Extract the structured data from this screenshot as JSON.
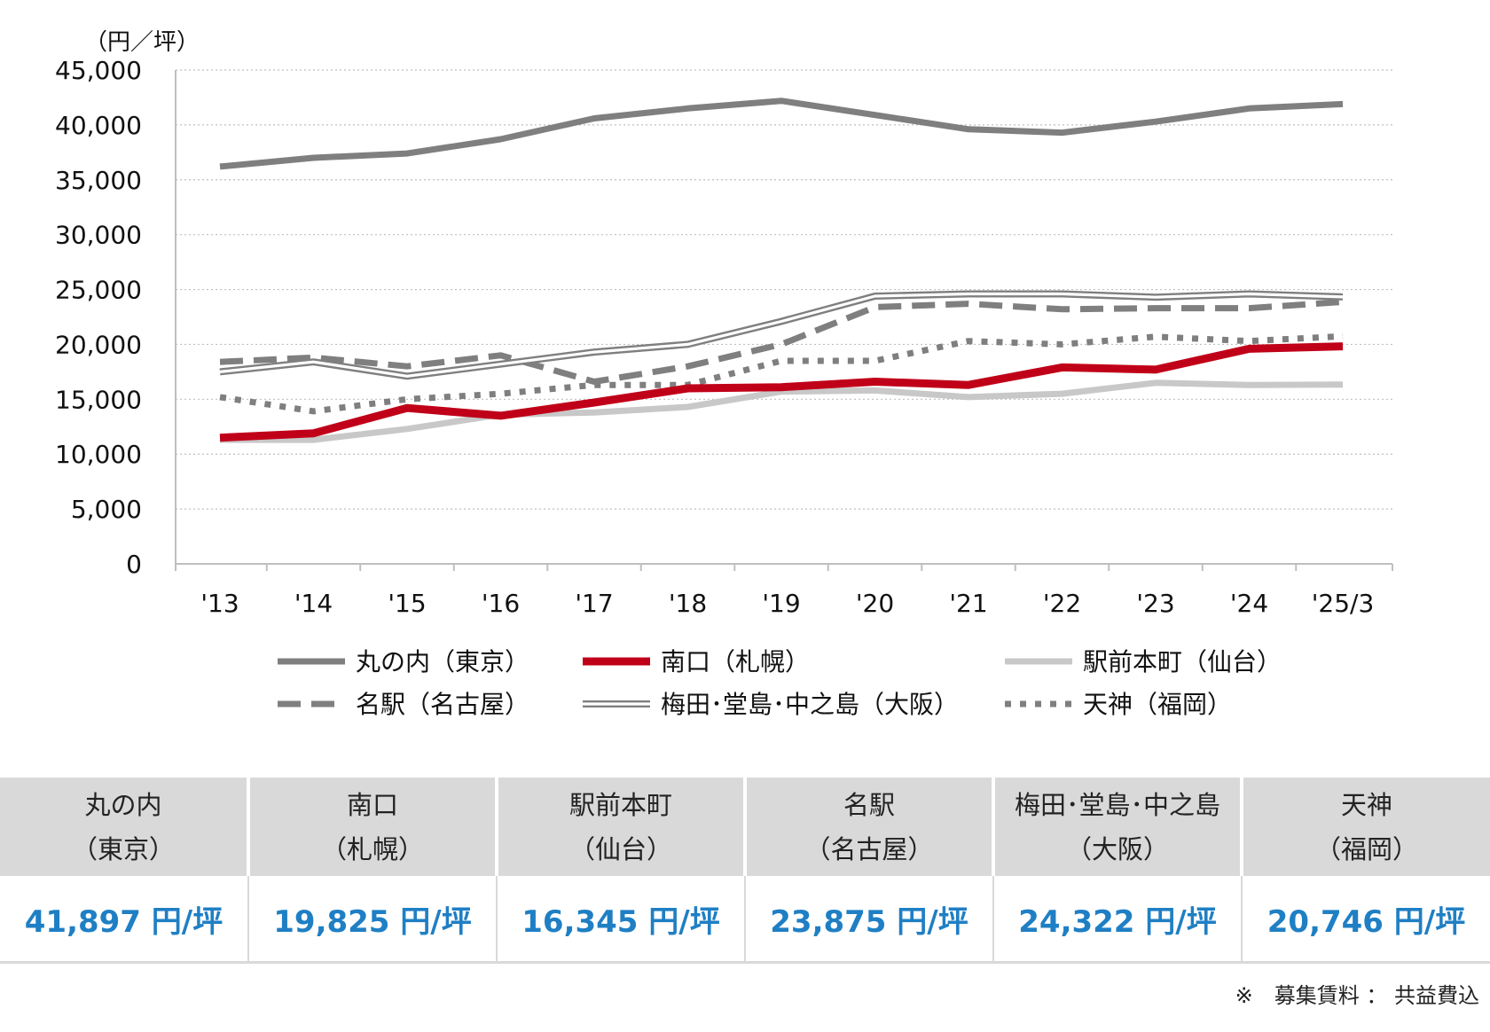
{
  "chart_data": {
    "type": "line",
    "unit_label": "（円／坪）",
    "ylim": [
      0,
      45000
    ],
    "yticks": [
      "0",
      "5,000",
      "10,000",
      "15,000",
      "20,000",
      "25,000",
      "30,000",
      "35,000",
      "40,000",
      "45,000"
    ],
    "yticks_values": [
      0,
      5000,
      10000,
      15000,
      20000,
      25000,
      30000,
      35000,
      40000,
      45000
    ],
    "categories": [
      "'13",
      "'14",
      "'15",
      "'16",
      "'17",
      "'18",
      "'19",
      "'20",
      "'21",
      "'22",
      "'23",
      "'24",
      "'25/3"
    ],
    "grid": "horizontal-dotted",
    "legend_position": "bottom",
    "series": [
      {
        "name": "丸の内（東京）",
        "style": "solid-thick",
        "color": "#7f7f7f",
        "values": [
          36200,
          37000,
          37400,
          38700,
          40600,
          41500,
          42200,
          40900,
          39600,
          39300,
          40300,
          41500,
          41897
        ]
      },
      {
        "name": "南口（札幌）",
        "style": "solid-bold",
        "color": "#c00018",
        "values": [
          11500,
          11900,
          14200,
          13500,
          14700,
          16000,
          16100,
          16600,
          16300,
          17900,
          17700,
          19600,
          19825
        ]
      },
      {
        "name": "駅前本町（仙台）",
        "style": "solid-light",
        "color": "#c8c8c8",
        "values": [
          11300,
          11300,
          12300,
          13600,
          13800,
          14300,
          15700,
          15800,
          15200,
          15500,
          16500,
          16300,
          16345
        ]
      },
      {
        "name": "名駅（名古屋）",
        "style": "dashed",
        "color": "#7f7f7f",
        "values": [
          18400,
          18800,
          18000,
          19000,
          16600,
          18000,
          20000,
          23400,
          23700,
          23200,
          23300,
          23300,
          23875
        ]
      },
      {
        "name": "梅田･堂島･中之島（大阪）",
        "style": "double",
        "color": "#7f7f7f",
        "values": [
          17500,
          18400,
          17100,
          18200,
          19300,
          20000,
          22100,
          24400,
          24600,
          24600,
          24300,
          24600,
          24322
        ]
      },
      {
        "name": "天神（福岡）",
        "style": "dotted",
        "color": "#7f7f7f",
        "values": [
          15200,
          13900,
          15000,
          15500,
          16300,
          16300,
          18500,
          18500,
          20300,
          20000,
          20700,
          20300,
          20746
        ]
      }
    ]
  },
  "table": {
    "headers": [
      {
        "line1": "丸の内",
        "line2": "（東京）"
      },
      {
        "line1": "南口",
        "line2": "（札幌）"
      },
      {
        "line1": "駅前本町",
        "line2": "（仙台）"
      },
      {
        "line1": "名駅",
        "line2": "（名古屋）"
      },
      {
        "line1": "梅田･堂島･中之島",
        "line2": "（大阪）"
      },
      {
        "line1": "天神",
        "line2": "（福岡）"
      }
    ],
    "values": [
      "41,897 円/坪",
      "19,825 円/坪",
      "16,345 円/坪",
      "23,875 円/坪",
      "24,322 円/坪",
      "20,746 円/坪"
    ],
    "value_color": "#1f7fc4",
    "header_bg": "#d9d9d9"
  },
  "note": "※　募集賃料 ： 共益費込"
}
